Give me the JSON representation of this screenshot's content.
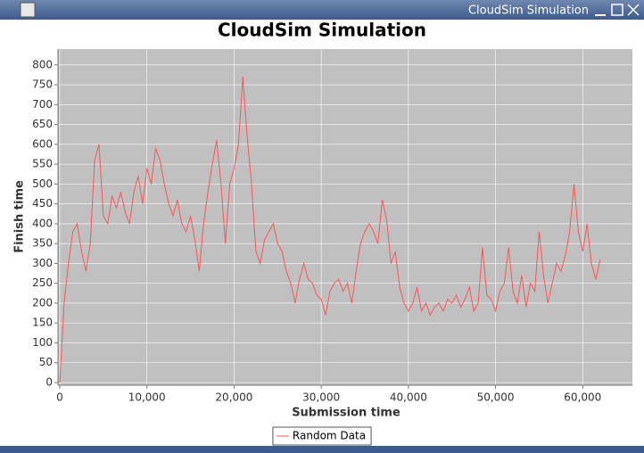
{
  "window_title": "CloudSim Simulation",
  "chart_data": {
    "type": "line",
    "title": "CloudSim Simulation",
    "x_label": "Submission time",
    "y_label": "Finish time",
    "x": [
      0,
      500,
      1000,
      1500,
      2000,
      2500,
      3000,
      3500,
      4000,
      4500,
      5000,
      5500,
      6000,
      6500,
      7000,
      7500,
      8000,
      8500,
      9000,
      9500,
      10000,
      10500,
      11000,
      11500,
      12000,
      12500,
      13000,
      13500,
      14000,
      14500,
      15000,
      15500,
      16000,
      16500,
      17000,
      17500,
      18000,
      18500,
      19000,
      19500,
      20000,
      20500,
      21000,
      21500,
      22000,
      22500,
      23000,
      23500,
      24000,
      24500,
      25000,
      25500,
      26000,
      26500,
      27000,
      27500,
      28000,
      28500,
      29000,
      29500,
      30000,
      30500,
      31000,
      31500,
      32000,
      32500,
      33000,
      33500,
      34000,
      34500,
      35000,
      35500,
      36000,
      36500,
      37000,
      37500,
      38000,
      38500,
      39000,
      39500,
      40000,
      40500,
      41000,
      41500,
      42000,
      42500,
      43000,
      43500,
      44000,
      44500,
      45000,
      45500,
      46000,
      46500,
      47000,
      47500,
      48000,
      48500,
      49000,
      49500,
      50000,
      50500,
      51000,
      51500,
      52000,
      52500,
      53000,
      53500,
      54000,
      54500,
      55000,
      55500,
      56000,
      56500,
      57000,
      57500,
      58000,
      58500,
      59000,
      59500,
      60000,
      60500,
      61000,
      61500,
      62000
    ],
    "series": [
      {
        "name": "Random Data",
        "color": "#ff5555",
        "values": [
          0,
          200,
          300,
          380,
          400,
          330,
          280,
          350,
          560,
          600,
          420,
          400,
          470,
          440,
          480,
          430,
          400,
          480,
          520,
          450,
          540,
          500,
          590,
          560,
          500,
          450,
          420,
          460,
          400,
          380,
          420,
          360,
          280,
          400,
          480,
          550,
          610,
          500,
          350,
          500,
          540,
          600,
          770,
          620,
          500,
          330,
          300,
          360,
          380,
          400,
          350,
          330,
          280,
          250,
          200,
          260,
          300,
          260,
          250,
          220,
          210,
          170,
          230,
          250,
          260,
          230,
          250,
          200,
          280,
          350,
          380,
          400,
          380,
          350,
          460,
          410,
          300,
          330,
          240,
          200,
          180,
          200,
          240,
          180,
          200,
          170,
          190,
          200,
          180,
          210,
          200,
          220,
          190,
          210,
          240,
          180,
          200,
          340,
          220,
          210,
          180,
          230,
          250,
          340,
          230,
          200,
          270,
          190,
          250,
          230,
          380,
          270,
          200,
          250,
          300,
          280,
          320,
          380,
          500,
          380,
          330,
          400,
          300,
          260,
          310
        ]
      }
    ],
    "xlim": [
      0,
      65700
    ],
    "ylim": [
      0,
      840
    ],
    "xticks": [
      0,
      {
        "value": 10000,
        "label": "10,000"
      },
      {
        "value": 20000,
        "label": "20,000"
      },
      {
        "value": 30000,
        "label": "30,000"
      },
      {
        "value": 40000,
        "label": "40,000"
      },
      {
        "value": 50000,
        "label": "50,000"
      },
      {
        "value": 60000,
        "label": "60,000"
      }
    ],
    "yticks": [
      0,
      50,
      100,
      150,
      200,
      250,
      300,
      350,
      400,
      450,
      500,
      550,
      600,
      650,
      700,
      750,
      800
    ],
    "grid": true,
    "background": "#c0c0c0",
    "legend": "bottom"
  }
}
